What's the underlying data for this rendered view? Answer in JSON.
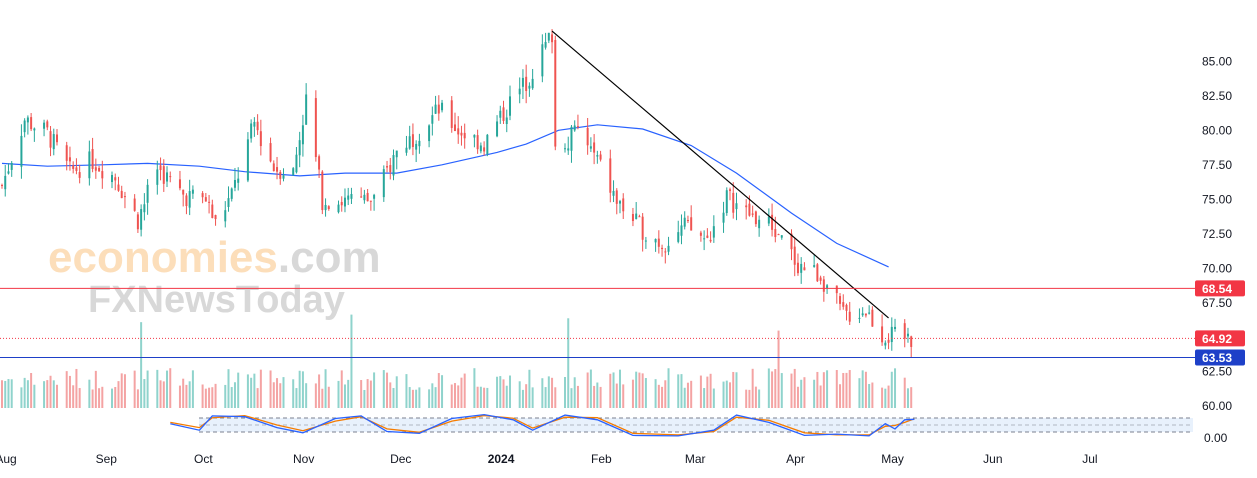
{
  "watermark": {
    "brand_main": "economies",
    "brand_suffix": ".com",
    "brand_second": "FXNewsToday"
  },
  "chart_data": {
    "type": "candlestick",
    "y_axis": {
      "ticks": [
        "85.00",
        "82.50",
        "80.00",
        "77.50",
        "75.00",
        "72.50",
        "70.00",
        "67.50",
        "62.50",
        "60.00"
      ],
      "ylim": [
        59.0,
        88.0
      ]
    },
    "x_axis": {
      "ticks": [
        "Aug",
        "Sep",
        "Oct",
        "Nov",
        "Dec",
        "2024",
        "Feb",
        "Mar",
        "Apr",
        "May",
        "Jun",
        "Jul"
      ],
      "range": [
        "2023-08-01",
        "2024-07-31"
      ]
    },
    "price_lines": [
      {
        "label": "68.54",
        "value": 68.54,
        "color": "#f23645",
        "style": "solid"
      },
      {
        "label": "64.92",
        "value": 64.92,
        "color": "#f23645",
        "style": "dotted"
      },
      {
        "label": "63.53",
        "value": 63.53,
        "color": "#1e40c8",
        "style": "solid"
      }
    ],
    "stoch_axis_label": "0.00",
    "trendline": {
      "from": [
        "2024-01-18",
        87.2
      ],
      "to": [
        "2024-05-01",
        66.4
      ],
      "color": "#000000"
    },
    "moving_average": {
      "color": "#2962ff",
      "points": [
        [
          "2023-08-01",
          77.6
        ],
        [
          "2023-08-15",
          77.4
        ],
        [
          "2023-09-01",
          77.5
        ],
        [
          "2023-09-15",
          77.6
        ],
        [
          "2023-10-01",
          77.4
        ],
        [
          "2023-10-15",
          77.0
        ],
        [
          "2023-11-01",
          76.7
        ],
        [
          "2023-11-15",
          76.9
        ],
        [
          "2023-12-01",
          76.9
        ],
        [
          "2023-12-15",
          77.5
        ],
        [
          "2024-01-01",
          78.4
        ],
        [
          "2024-01-10",
          79.0
        ],
        [
          "2024-01-20",
          80.0
        ],
        [
          "2024-02-01",
          80.4
        ],
        [
          "2024-02-15",
          80.1
        ],
        [
          "2024-03-01",
          78.9
        ],
        [
          "2024-03-15",
          76.9
        ],
        [
          "2024-04-01",
          74.0
        ],
        [
          "2024-04-15",
          71.8
        ],
        [
          "2024-05-01",
          70.1
        ]
      ]
    },
    "stochastic": {
      "k_color": "#2962ff",
      "d_color": "#f57c00",
      "k": [
        [
          "2023-09-22",
          55
        ],
        [
          "2023-10-01",
          30
        ],
        [
          "2023-10-05",
          85
        ],
        [
          "2023-10-15",
          82
        ],
        [
          "2023-10-25",
          40
        ],
        [
          "2023-11-02",
          20
        ],
        [
          "2023-11-12",
          75
        ],
        [
          "2023-11-20",
          85
        ],
        [
          "2023-11-28",
          25
        ],
        [
          "2023-12-08",
          18
        ],
        [
          "2023-12-18",
          75
        ],
        [
          "2023-12-28",
          90
        ],
        [
          "2024-01-06",
          70
        ],
        [
          "2024-01-12",
          30
        ],
        [
          "2024-01-22",
          88
        ],
        [
          "2024-02-01",
          70
        ],
        [
          "2024-02-12",
          10
        ],
        [
          "2024-02-26",
          8
        ],
        [
          "2024-03-08",
          30
        ],
        [
          "2024-03-15",
          88
        ],
        [
          "2024-03-25",
          60
        ],
        [
          "2024-04-05",
          10
        ],
        [
          "2024-04-15",
          15
        ],
        [
          "2024-04-25",
          8
        ],
        [
          "2024-04-30",
          55
        ],
        [
          "2024-05-03",
          35
        ],
        [
          "2024-05-06",
          70
        ],
        [
          "2024-05-09",
          72
        ]
      ],
      "d": [
        [
          "2023-09-22",
          60
        ],
        [
          "2023-10-01",
          40
        ],
        [
          "2023-10-05",
          78
        ],
        [
          "2023-10-15",
          86
        ],
        [
          "2023-10-25",
          50
        ],
        [
          "2023-11-02",
          28
        ],
        [
          "2023-11-12",
          65
        ],
        [
          "2023-11-20",
          82
        ],
        [
          "2023-11-28",
          35
        ],
        [
          "2023-12-08",
          22
        ],
        [
          "2023-12-18",
          65
        ],
        [
          "2023-12-28",
          86
        ],
        [
          "2024-01-06",
          76
        ],
        [
          "2024-01-12",
          38
        ],
        [
          "2024-01-22",
          80
        ],
        [
          "2024-02-01",
          78
        ],
        [
          "2024-02-12",
          18
        ],
        [
          "2024-02-26",
          12
        ],
        [
          "2024-03-08",
          25
        ],
        [
          "2024-03-15",
          80
        ],
        [
          "2024-03-25",
          68
        ],
        [
          "2024-04-05",
          20
        ],
        [
          "2024-04-15",
          12
        ],
        [
          "2024-04-25",
          12
        ],
        [
          "2024-04-30",
          45
        ],
        [
          "2024-05-03",
          48
        ],
        [
          "2024-05-06",
          60
        ],
        [
          "2024-05-09",
          74
        ]
      ]
    },
    "candles": {
      "start_date": "2023-08-01",
      "trading_days_only": true,
      "close_path": [
        [
          "2023-08-01",
          76.0
        ],
        [
          "2023-08-08",
          80.8
        ],
        [
          "2023-08-15",
          79.8
        ],
        [
          "2023-08-22",
          77.0
        ],
        [
          "2023-08-29",
          77.8
        ],
        [
          "2023-09-05",
          76.6
        ],
        [
          "2023-09-12",
          73.5
        ],
        [
          "2023-09-18",
          77.3
        ],
        [
          "2023-09-26",
          75.3
        ],
        [
          "2023-10-03",
          75.0
        ],
        [
          "2023-10-06",
          73.2
        ],
        [
          "2023-10-11",
          75.3
        ],
        [
          "2023-10-18",
          80.5
        ],
        [
          "2023-10-24",
          77.3
        ],
        [
          "2023-10-30",
          77.0
        ],
        [
          "2023-11-03",
          82.2
        ],
        [
          "2023-11-08",
          75.0
        ],
        [
          "2023-11-17",
          74.8
        ],
        [
          "2023-11-24",
          75.0
        ],
        [
          "2023-12-01",
          78.5
        ],
        [
          "2023-12-08",
          80.0
        ],
        [
          "2023-12-14",
          81.5
        ],
        [
          "2023-12-20",
          80.0
        ],
        [
          "2023-12-28",
          79.0
        ],
        [
          "2024-01-05",
          82.0
        ],
        [
          "2024-01-10",
          83.5
        ],
        [
          "2024-01-18",
          87.0
        ],
        [
          "2024-01-19",
          78.8
        ],
        [
          "2024-01-26",
          80.0
        ],
        [
          "2024-02-01",
          77.8
        ],
        [
          "2024-02-07",
          74.8
        ],
        [
          "2024-02-14",
          73.0
        ],
        [
          "2024-02-21",
          71.8
        ],
        [
          "2024-02-28",
          73.0
        ],
        [
          "2024-03-06",
          72.0
        ],
        [
          "2024-03-12",
          75.2
        ],
        [
          "2024-03-18",
          74.0
        ],
        [
          "2024-03-26",
          73.0
        ],
        [
          "2024-04-03",
          70.3
        ],
        [
          "2024-04-10",
          69.5
        ],
        [
          "2024-04-17",
          66.6
        ],
        [
          "2024-04-24",
          67.0
        ],
        [
          "2024-04-29",
          65.2
        ],
        [
          "2024-05-03",
          65.0
        ],
        [
          "2024-05-08",
          64.92
        ]
      ]
    }
  }
}
